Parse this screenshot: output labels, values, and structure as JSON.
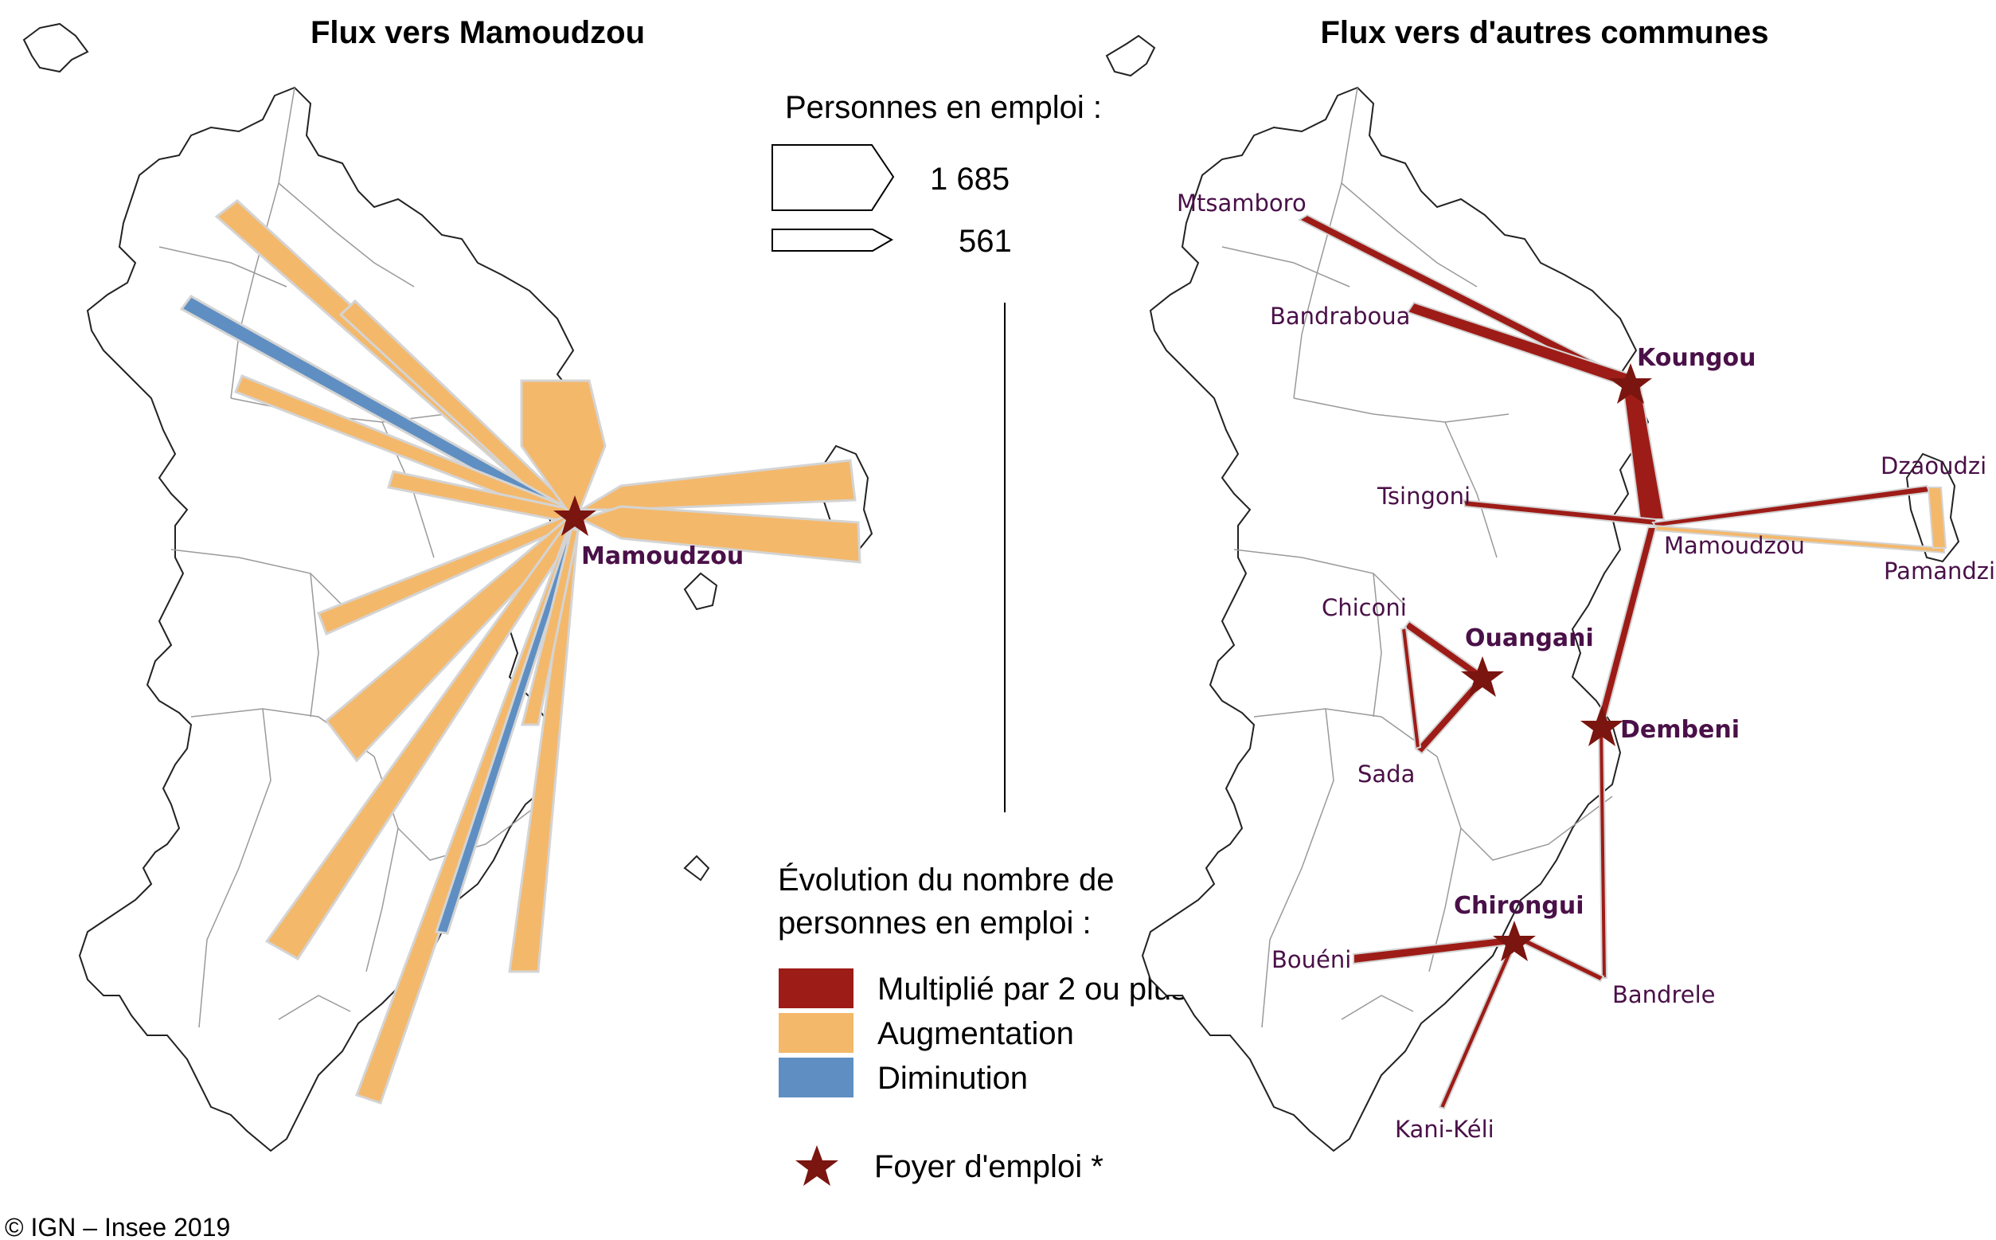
{
  "titles": {
    "left": "Flux vers Mamoudzou",
    "right": "Flux vers d'autres communes"
  },
  "legend": {
    "size_title": "Personnes en emploi :",
    "size_large": "1 685",
    "size_small": "561",
    "evolution_title_line1": "Évolution du nombre de",
    "evolution_title_line2": "personnes en emploi :",
    "items": [
      {
        "label": "Multiplié par 2 ou plus",
        "color": "#9e1c17"
      },
      {
        "label": "Augmentation",
        "color": "#f4b86b"
      },
      {
        "label": "Diminution",
        "color": "#5f8fc2"
      }
    ],
    "foyer_label": "Foyer d'emploi *",
    "star_color": "#7a1510"
  },
  "left_map": {
    "hub_label": "Mamoudzou"
  },
  "right_map": {
    "labels": {
      "mtsamboro": "Mtsamboro",
      "bandraboua": "Bandraboua",
      "koungou": "Koungou",
      "tsingoni": "Tsingoni",
      "dzaoudzi": "Dzaoudzi",
      "mamoudzou": "Mamoudzou",
      "pamandzi": "Pamandzi",
      "chiconi": "Chiconi",
      "ouangani": "Ouangani",
      "dembeni": "Dembeni",
      "sada": "Sada",
      "chirongui": "Chirongui",
      "boueni": "Bouéni",
      "bandrele": "Bandrele",
      "kani_keli": "Kani-Kéli"
    }
  },
  "copyright": "© IGN – Insee 2019"
}
